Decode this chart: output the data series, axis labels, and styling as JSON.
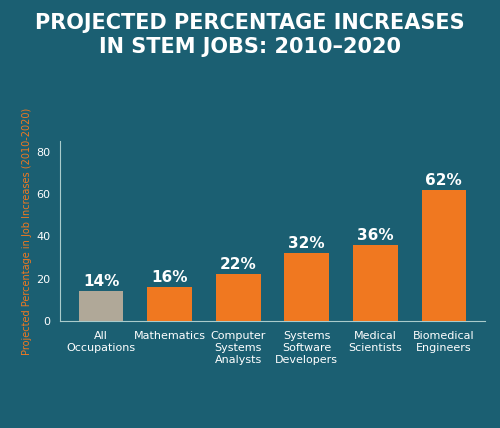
{
  "title": "PROJECTED PERCENTAGE INCREASES\nIN STEM JOBS: 2010–2020",
  "categories": [
    "All\nOccupations",
    "Mathematics",
    "Computer\nSystems\nAnalysts",
    "Systems\nSoftware\nDevelopers",
    "Medical\nScientists",
    "Biomedical\nEngineers"
  ],
  "values": [
    14,
    16,
    22,
    32,
    36,
    62
  ],
  "labels": [
    "14%",
    "16%",
    "22%",
    "32%",
    "36%",
    "62%"
  ],
  "bar_colors": [
    "#b0a898",
    "#f07820",
    "#f07820",
    "#f07820",
    "#f07820",
    "#f07820"
  ],
  "ylabel": "Projected Percentage in Job Increases (2010-2020)",
  "ylim": [
    0,
    85
  ],
  "yticks": [
    0,
    20,
    40,
    60,
    80
  ],
  "background_color": "#1b5f72",
  "plot_bg_color": "#1b5f72",
  "title_color": "#ffffff",
  "label_color": "#ffffff",
  "tick_color": "#ffffff",
  "ylabel_color": "#f07820",
  "axis_color": "#aacccc",
  "title_fontsize": 15,
  "label_fontsize": 11,
  "tick_fontsize": 8,
  "ylabel_fontsize": 7,
  "bar_width": 0.65
}
